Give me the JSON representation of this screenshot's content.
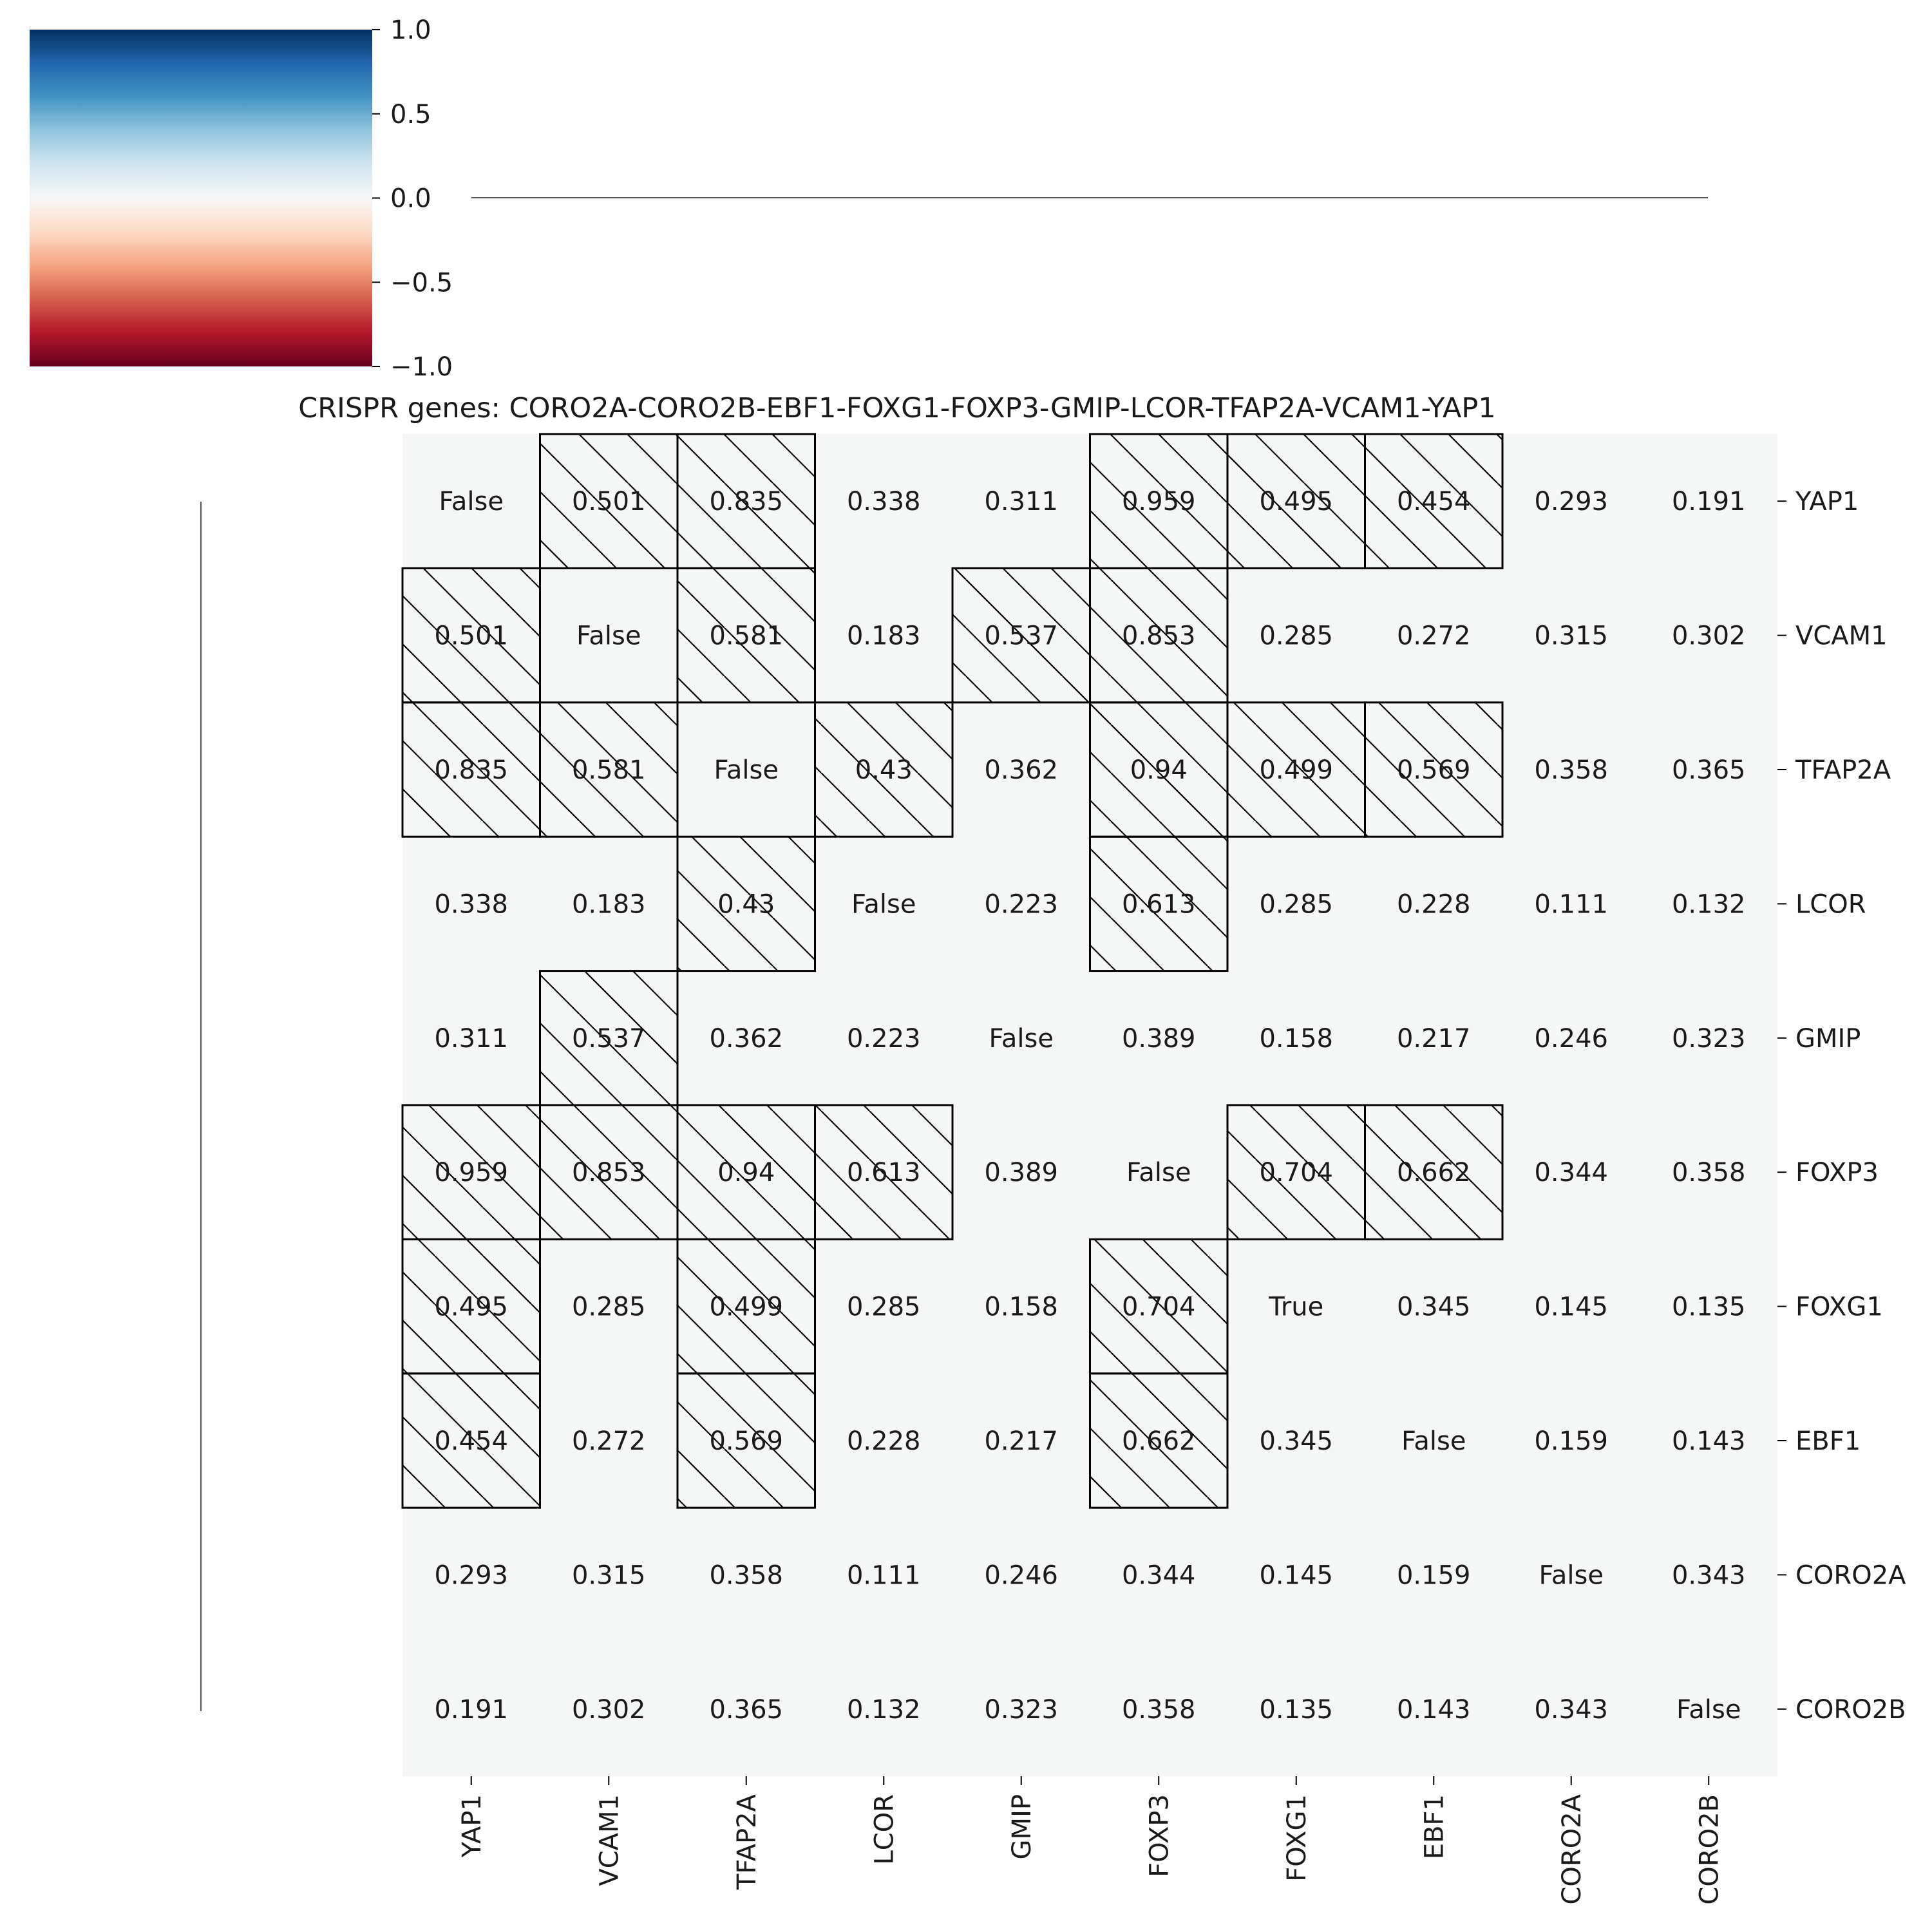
{
  "chart_data": {
    "type": "heatmap",
    "title": "CRISPR genes: CORO2A-CORO2B-EBF1-FOXG1-FOXP3-GMIP-LCOR-TFAP2A-VCAM1-YAP1",
    "xlabel": "",
    "ylabel": "",
    "rows": [
      "YAP1",
      "VCAM1",
      "TFAP2A",
      "LCOR",
      "GMIP",
      "FOXP3",
      "FOXG1",
      "EBF1",
      "CORO2A",
      "CORO2B"
    ],
    "columns": [
      "YAP1",
      "VCAM1",
      "TFAP2A",
      "LCOR",
      "GMIP",
      "FOXP3",
      "FOXG1",
      "EBF1",
      "CORO2A",
      "CORO2B"
    ],
    "cell_labels": [
      [
        "False",
        "0.501",
        "0.835",
        "0.338",
        "0.311",
        "0.959",
        "0.495",
        "0.454",
        "0.293",
        "0.191"
      ],
      [
        "0.501",
        "False",
        "0.581",
        "0.183",
        "0.537",
        "0.853",
        "0.285",
        "0.272",
        "0.315",
        "0.302"
      ],
      [
        "0.835",
        "0.581",
        "False",
        "0.43",
        "0.362",
        "0.94",
        "0.499",
        "0.569",
        "0.358",
        "0.365"
      ],
      [
        "0.338",
        "0.183",
        "0.43",
        "False",
        "0.223",
        "0.613",
        "0.285",
        "0.228",
        "0.111",
        "0.132"
      ],
      [
        "0.311",
        "0.537",
        "0.362",
        "0.223",
        "False",
        "0.389",
        "0.158",
        "0.217",
        "0.246",
        "0.323"
      ],
      [
        "0.959",
        "0.853",
        "0.94",
        "0.613",
        "0.389",
        "False",
        "0.704",
        "0.662",
        "0.344",
        "0.358"
      ],
      [
        "0.495",
        "0.285",
        "0.499",
        "0.285",
        "0.158",
        "0.704",
        "True",
        "0.345",
        "0.145",
        "0.135"
      ],
      [
        "0.454",
        "0.272",
        "0.569",
        "0.228",
        "0.217",
        "0.662",
        "0.345",
        "False",
        "0.159",
        "0.143"
      ],
      [
        "0.293",
        "0.315",
        "0.358",
        "0.111",
        "0.246",
        "0.344",
        "0.145",
        "0.159",
        "False",
        "0.343"
      ],
      [
        "0.191",
        "0.302",
        "0.365",
        "0.132",
        "0.323",
        "0.358",
        "0.135",
        "0.143",
        "0.343",
        "False"
      ]
    ],
    "cell_value": 0.0,
    "highlighted_cells": [
      [
        0,
        1
      ],
      [
        0,
        2
      ],
      [
        0,
        5
      ],
      [
        0,
        6
      ],
      [
        0,
        7
      ],
      [
        1,
        0
      ],
      [
        1,
        2
      ],
      [
        1,
        4
      ],
      [
        1,
        5
      ],
      [
        2,
        0
      ],
      [
        2,
        1
      ],
      [
        2,
        3
      ],
      [
        2,
        5
      ],
      [
        2,
        6
      ],
      [
        2,
        7
      ],
      [
        3,
        2
      ],
      [
        3,
        5
      ],
      [
        4,
        1
      ],
      [
        5,
        0
      ],
      [
        5,
        1
      ],
      [
        5,
        2
      ],
      [
        5,
        3
      ],
      [
        5,
        6
      ],
      [
        5,
        7
      ],
      [
        6,
        0
      ],
      [
        6,
        2
      ],
      [
        6,
        5
      ],
      [
        7,
        0
      ],
      [
        7,
        2
      ],
      [
        7,
        5
      ]
    ],
    "highlight_style": "hatched",
    "colorbar": {
      "range": [
        -1.0,
        1.0
      ],
      "ticks": [
        "1.0",
        "0.5",
        "0.0",
        "−0.5",
        "−1.0"
      ],
      "tick_values": [
        1.0,
        0.5,
        0.0,
        -0.5,
        -1.0
      ],
      "colormap": "RdBu",
      "colors": [
        "#67001f",
        "#b2182b",
        "#d6604d",
        "#f4a582",
        "#fddbc7",
        "#f7f7f7",
        "#d1e5f0",
        "#92c5de",
        "#4393c3",
        "#2166ac",
        "#053061"
      ]
    },
    "cell_color": "#f5f6f6",
    "dendrograms": "flat"
  }
}
